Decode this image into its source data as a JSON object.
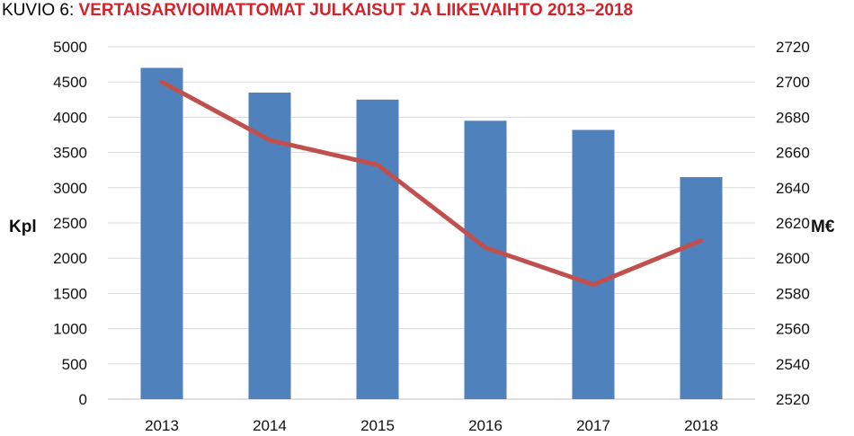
{
  "title": {
    "prefix": "KUVIO 6: ",
    "main": "VERTAISARVIOIMATTOMAT JULKAISUT JA LIIKEVAIHTO 2013–2018"
  },
  "colors": {
    "bar": "#4f81bd",
    "line": "#c0504d",
    "grid": "#d9d9d9",
    "title_accent": "#d2232a"
  },
  "chart_data": {
    "type": "bar",
    "categories": [
      "2013",
      "2014",
      "2015",
      "2016",
      "2017",
      "2018"
    ],
    "series": [
      {
        "type": "bar",
        "axis": "left",
        "values": [
          4700,
          4350,
          4250,
          3950,
          3820,
          3150
        ]
      },
      {
        "type": "line",
        "axis": "right",
        "values": [
          2700,
          2667,
          2653,
          2606,
          2585,
          2610
        ]
      }
    ],
    "ylabel": "Kpl",
    "y2label": "M€",
    "ylim": [
      0,
      5000
    ],
    "y2lim": [
      2520,
      2720
    ],
    "yticks": [
      "0",
      "500",
      "1000",
      "1500",
      "2000",
      "2500",
      "3000",
      "3500",
      "4000",
      "4500",
      "5000"
    ],
    "y2ticks": [
      "2520",
      "2540",
      "2560",
      "2580",
      "2600",
      "2620",
      "2640",
      "2660",
      "2680",
      "2700",
      "2720"
    ],
    "grid": true,
    "legend": "none"
  }
}
